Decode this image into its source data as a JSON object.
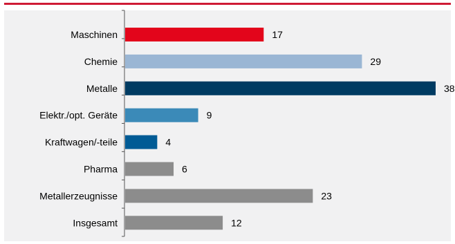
{
  "chart_data": {
    "type": "bar",
    "orientation": "horizontal",
    "categories": [
      "Maschinen",
      "Chemie",
      "Metalle",
      "Elektr./opt. Geräte",
      "Kraftwagen/-teile",
      "Pharma",
      "Metallerzeugnisse",
      "Insgesamt"
    ],
    "values": [
      17,
      29,
      38,
      9,
      4,
      6,
      23,
      12
    ],
    "colors": [
      "#e3051b",
      "#9ab6d4",
      "#003b62",
      "#3b8ab8",
      "#005b95",
      "#8c8c8c",
      "#8c8c8c",
      "#8c8c8c"
    ],
    "xlim": [
      0,
      38
    ],
    "grid": false,
    "data_labels": true
  },
  "colors": {
    "accent_rule": "#cf1b35",
    "panel_background": "#f1f1f2",
    "axis_line": "#555555"
  }
}
